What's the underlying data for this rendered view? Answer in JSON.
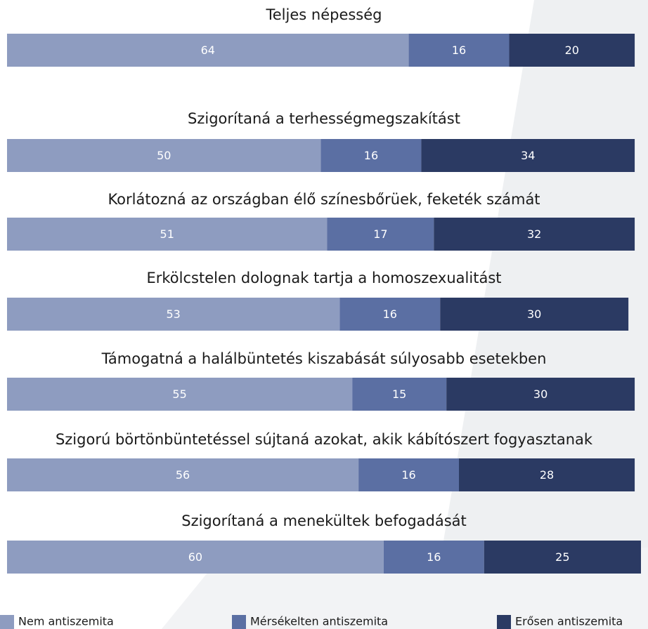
{
  "chart_data": {
    "type": "stacked-bar",
    "categories": [
      "Teljes népesség",
      "Szigorítaná a terhességmegszakítást",
      "Korlátozná az országban élő színesbőrüek, feketék számát",
      "Erkölcstelen dolognak tartja a homoszexualitást",
      "Támogatná a halálbüntetés kiszabását súlyosabb esetekben",
      "Szigorú börtönbüntetéssel sújtaná azokat, akik kábítószert fogyasztanak",
      "Szigorítaná a menekültek befogadását"
    ],
    "series": [
      {
        "name": "Nem antiszemita",
        "color": "#8e9cc0",
        "values": [
          64,
          50,
          51,
          53,
          55,
          56,
          60
        ]
      },
      {
        "name": "Mérsékelten antiszemita",
        "color": "#5b6fa3",
        "values": [
          16,
          16,
          17,
          16,
          15,
          16,
          16
        ]
      },
      {
        "name": "Erősen antiszemita",
        "color": "#2b3a63",
        "values": [
          20,
          34,
          32,
          30,
          30,
          28,
          25
        ]
      }
    ]
  }
}
